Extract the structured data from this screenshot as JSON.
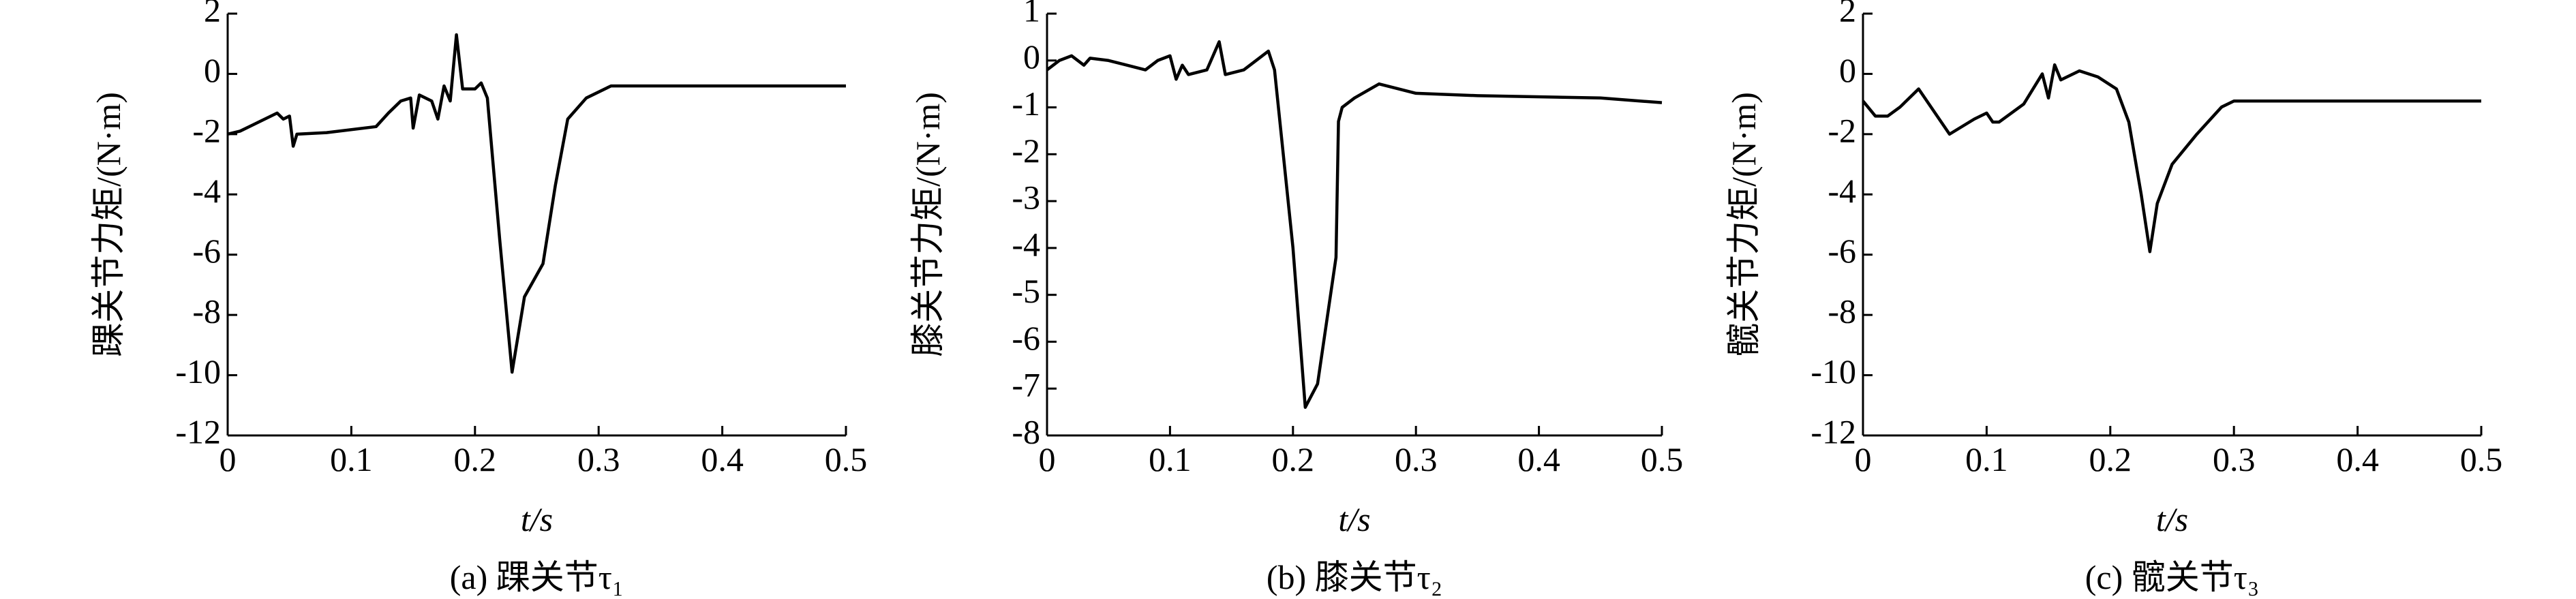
{
  "chart_data": [
    {
      "type": "line",
      "caption": "(a) 踝关节τ₁",
      "xlabel": "t/s",
      "ylabel": "踝关节力矩/(N·m)",
      "color": "#000000",
      "xlim": [
        0,
        0.5
      ],
      "xticks": [
        0,
        0.1,
        0.2,
        0.3,
        0.4,
        0.5
      ],
      "ylim": [
        -12,
        2
      ],
      "yticks": [
        2,
        0,
        -2,
        -4,
        -6,
        -8,
        -10,
        -12
      ],
      "x": [
        0,
        0.01,
        0.02,
        0.03,
        0.04,
        0.045,
        0.05,
        0.053,
        0.056,
        0.08,
        0.12,
        0.13,
        0.14,
        0.148,
        0.15,
        0.155,
        0.16,
        0.165,
        0.17,
        0.175,
        0.18,
        0.185,
        0.19,
        0.2,
        0.205,
        0.21,
        0.22,
        0.23,
        0.24,
        0.255,
        0.265,
        0.275,
        0.29,
        0.31,
        0.4,
        0.5
      ],
      "values": [
        -2.0,
        -1.9,
        -1.7,
        -1.5,
        -1.3,
        -1.5,
        -1.4,
        -2.4,
        -2.0,
        -1.95,
        -1.75,
        -1.3,
        -0.9,
        -0.8,
        -1.8,
        -0.7,
        -0.8,
        -0.9,
        -1.5,
        -0.4,
        -0.9,
        1.3,
        -0.5,
        -0.5,
        -0.3,
        -0.8,
        -5.5,
        -9.9,
        -7.4,
        -6.3,
        -3.7,
        -1.5,
        -0.8,
        -0.4,
        -0.4,
        -0.4
      ]
    },
    {
      "type": "line",
      "caption": "(b) 膝关节τ₂",
      "xlabel": "t/s",
      "ylabel": "膝关节力矩/(N·m)",
      "color": "#000000",
      "xlim": [
        0,
        0.5
      ],
      "xticks": [
        0,
        0.1,
        0.2,
        0.3,
        0.4,
        0.5
      ],
      "ylim": [
        -8,
        1
      ],
      "yticks": [
        1,
        0,
        -1,
        -2,
        -3,
        -4,
        -5,
        -6,
        -7,
        -8
      ],
      "x": [
        0,
        0.01,
        0.02,
        0.025,
        0.03,
        0.035,
        0.05,
        0.08,
        0.09,
        0.1,
        0.105,
        0.11,
        0.115,
        0.13,
        0.14,
        0.145,
        0.16,
        0.175,
        0.18,
        0.185,
        0.2,
        0.21,
        0.22,
        0.235,
        0.237,
        0.24,
        0.25,
        0.27,
        0.3,
        0.35,
        0.45,
        0.5
      ],
      "values": [
        -0.2,
        0.0,
        0.1,
        0.0,
        -0.1,
        0.05,
        0.0,
        -0.2,
        0.0,
        0.1,
        -0.4,
        -0.1,
        -0.3,
        -0.2,
        0.4,
        -0.3,
        -0.2,
        0.1,
        0.2,
        -0.2,
        -4.0,
        -7.4,
        -6.9,
        -4.2,
        -1.3,
        -1.0,
        -0.8,
        -0.5,
        -0.7,
        -0.75,
        -0.8,
        -0.9
      ]
    },
    {
      "type": "line",
      "caption": "(c) 髋关节τ₃",
      "xlabel": "t/s",
      "ylabel": "髋关节力矩/(N·m)",
      "color": "#000000",
      "xlim": [
        0,
        0.5
      ],
      "xticks": [
        0,
        0.1,
        0.2,
        0.3,
        0.4,
        0.5
      ],
      "ylim": [
        -12,
        2
      ],
      "yticks": [
        2,
        0,
        -2,
        -4,
        -6,
        -8,
        -10,
        -12
      ],
      "x": [
        0,
        0.01,
        0.02,
        0.03,
        0.045,
        0.07,
        0.09,
        0.1,
        0.105,
        0.11,
        0.13,
        0.145,
        0.15,
        0.155,
        0.16,
        0.175,
        0.19,
        0.205,
        0.215,
        0.225,
        0.232,
        0.238,
        0.25,
        0.27,
        0.29,
        0.3,
        0.4,
        0.5
      ],
      "values": [
        -0.9,
        -1.4,
        -1.4,
        -1.1,
        -0.5,
        -2.0,
        -1.5,
        -1.3,
        -1.6,
        -1.6,
        -1.0,
        0.0,
        -0.8,
        0.3,
        -0.2,
        0.1,
        -0.1,
        -0.5,
        -1.6,
        -4.0,
        -5.9,
        -4.3,
        -3.0,
        -2.0,
        -1.1,
        -0.9,
        -0.9,
        -0.9
      ]
    }
  ]
}
